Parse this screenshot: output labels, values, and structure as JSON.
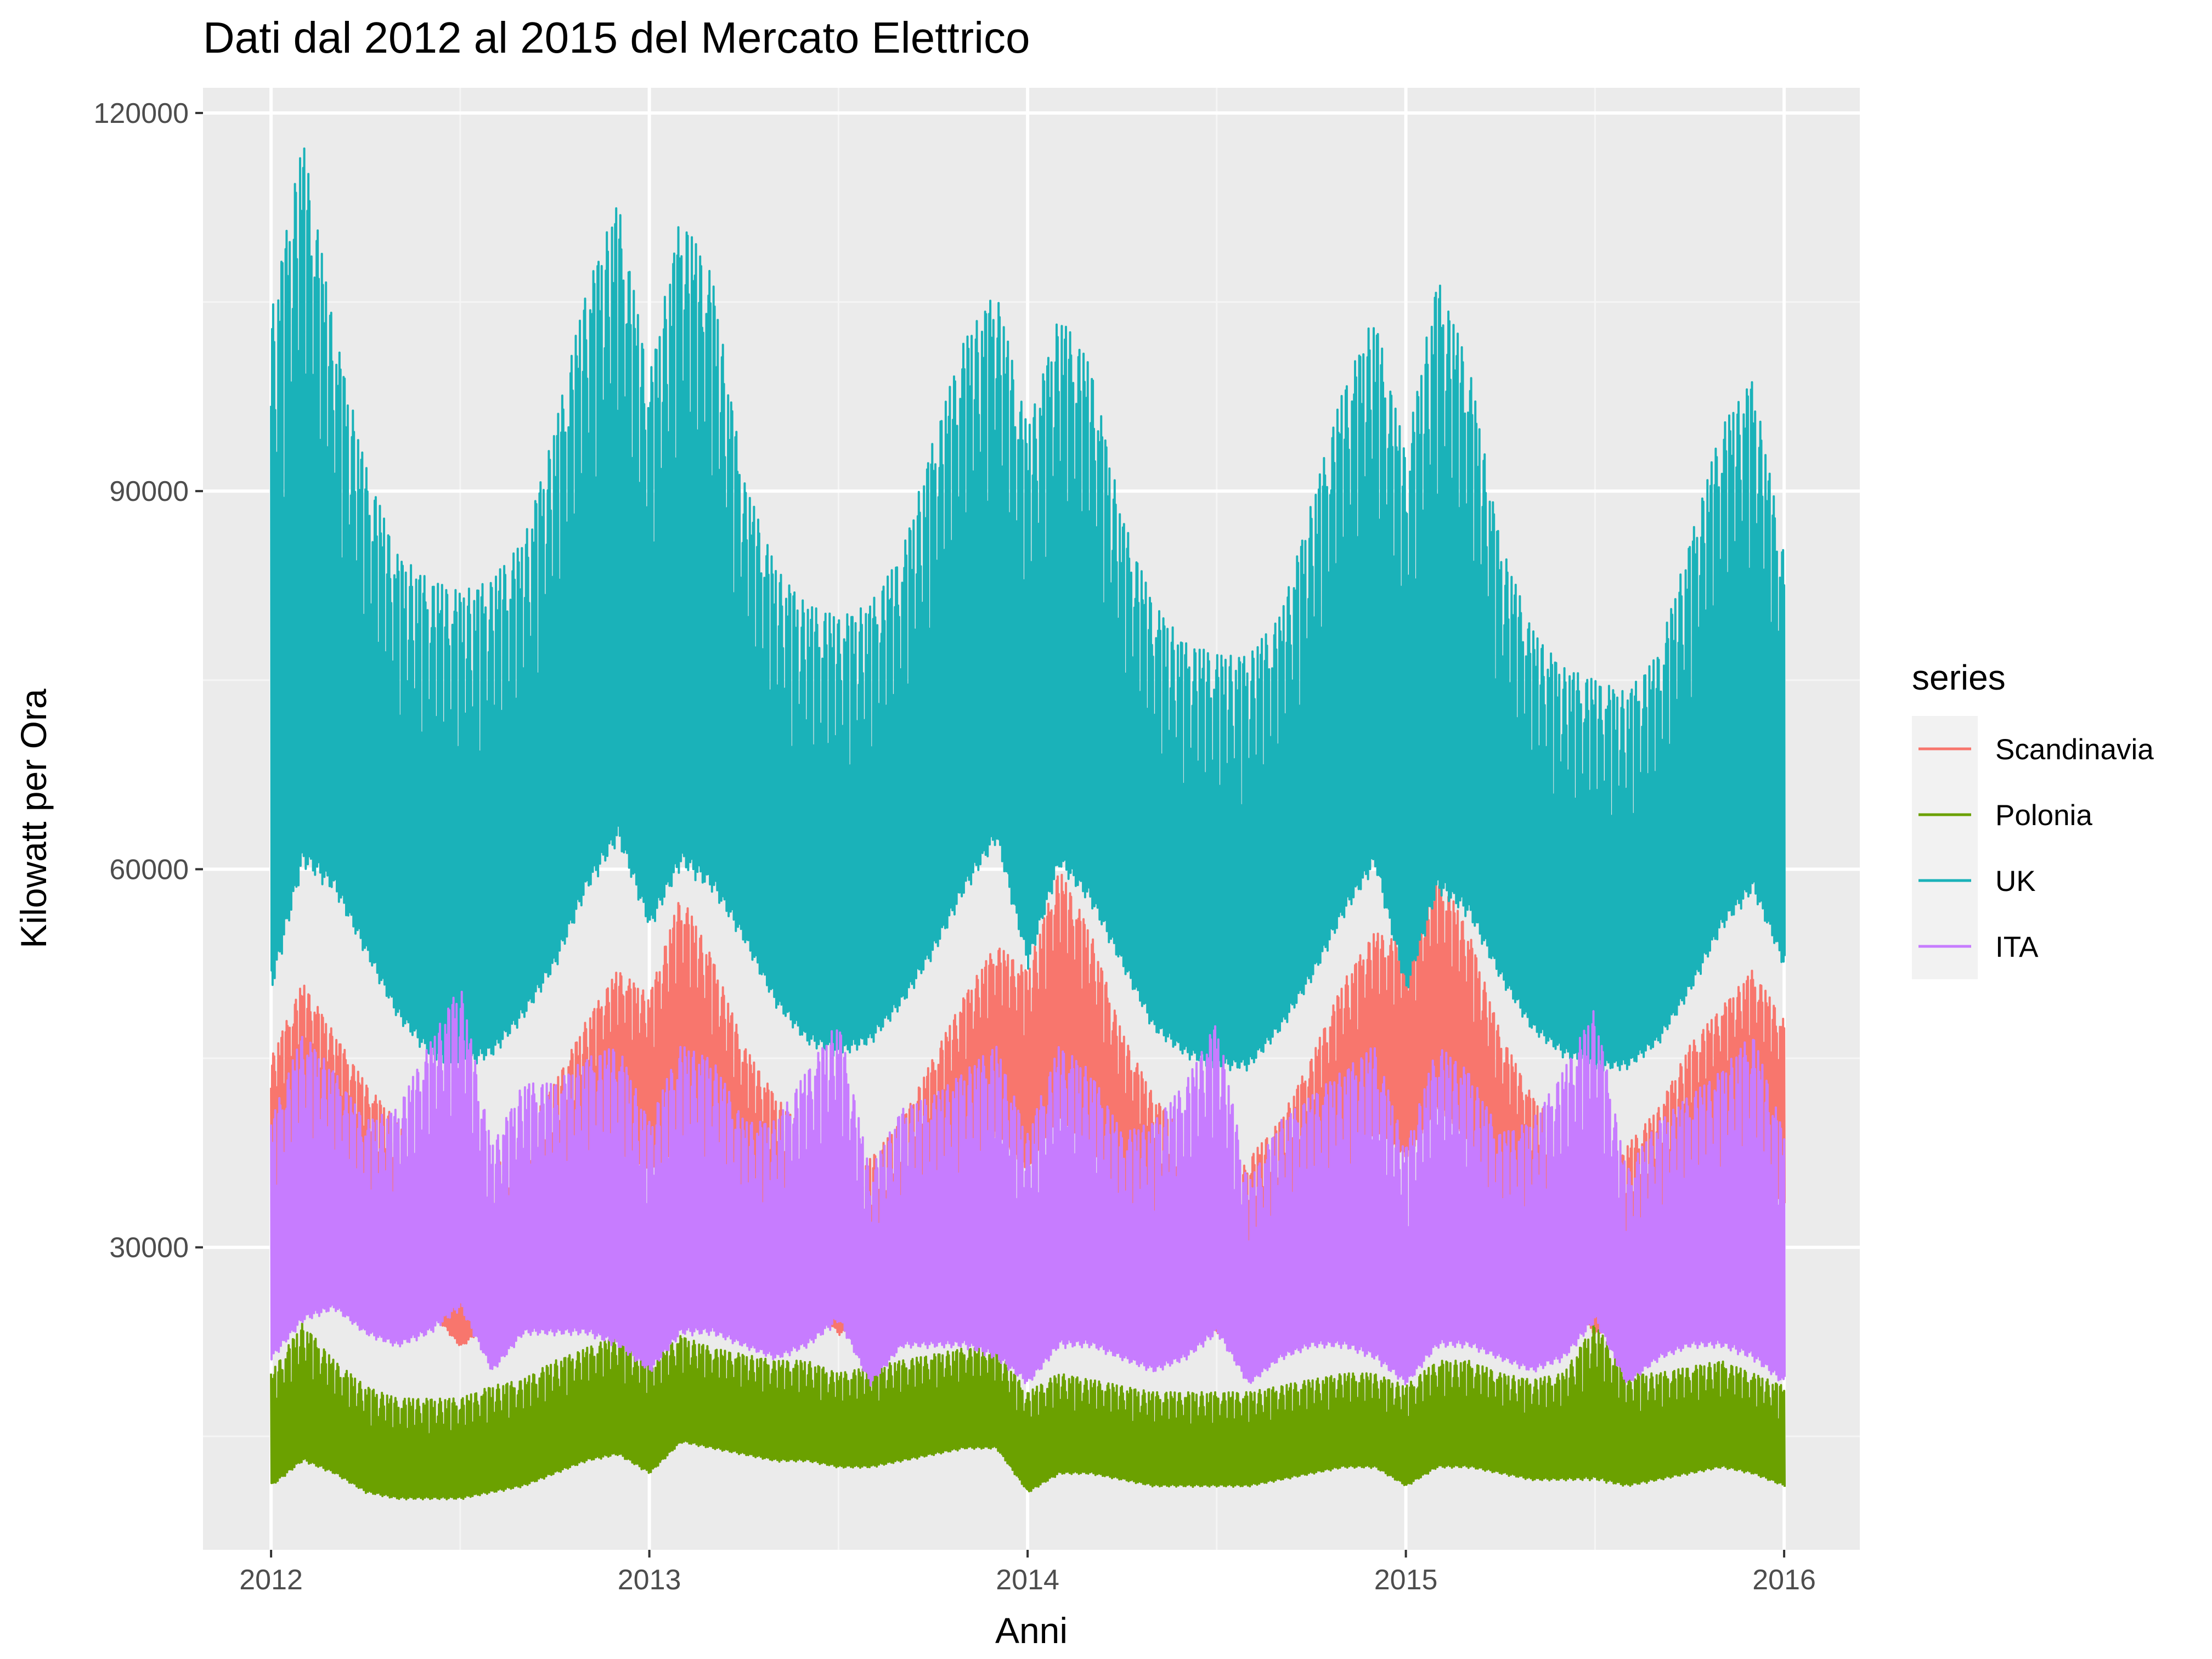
{
  "chart_data": {
    "type": "line",
    "title": "Dati dal 2012 al 2015 del Mercato Elettrico",
    "xlabel": "Anni",
    "ylabel": "Kilowatt per Ora",
    "xlim": [
      2011.82,
      2016.2
    ],
    "ylim": [
      6000,
      122000
    ],
    "x_ticks": [
      2012,
      2013,
      2014,
      2015,
      2016
    ],
    "x_tick_labels": [
      "2012",
      "2013",
      "2014",
      "2015",
      "2016"
    ],
    "y_ticks": [
      30000,
      60000,
      90000,
      120000
    ],
    "y_tick_labels": [
      "30000",
      "60000",
      "90000",
      "120000"
    ],
    "grid": true,
    "legend": {
      "title": "series",
      "position": "right"
    },
    "sampling": "monthly approximate daily min and max of hourly load",
    "x": [
      2012.0,
      2012.083,
      2012.167,
      2012.25,
      2012.333,
      2012.417,
      2012.5,
      2012.583,
      2012.667,
      2012.75,
      2012.833,
      2012.917,
      2013.0,
      2013.083,
      2013.167,
      2013.25,
      2013.333,
      2013.417,
      2013.5,
      2013.583,
      2013.667,
      2013.75,
      2013.833,
      2013.917,
      2014.0,
      2014.083,
      2014.167,
      2014.25,
      2014.333,
      2014.417,
      2014.5,
      2014.583,
      2014.667,
      2014.75,
      2014.833,
      2014.917,
      2015.0,
      2015.083,
      2015.167,
      2015.25,
      2015.333,
      2015.417,
      2015.5,
      2015.583,
      2015.667,
      2015.75,
      2015.833,
      2015.917,
      2016.0
    ],
    "series": [
      {
        "name": "Scandinavia",
        "color": "#F8766D",
        "min": [
          32000,
          36000,
          35000,
          30000,
          27000,
          25000,
          22000,
          24000,
          27000,
          30000,
          34000,
          37000,
          36000,
          38000,
          36000,
          31000,
          28000,
          26000,
          23000,
          24000,
          27000,
          31000,
          35000,
          39000,
          36000,
          40000,
          38000,
          32000,
          29000,
          26000,
          23000,
          24000,
          27000,
          31000,
          35000,
          39000,
          37000,
          41000,
          38000,
          32000,
          29000,
          26000,
          23000,
          24000,
          27000,
          31000,
          35000,
          37000,
          33000
        ],
        "max": [
          45000,
          51000,
          47000,
          43000,
          40000,
          38000,
          33000,
          36000,
          39000,
          43000,
          48000,
          52000,
          50000,
          58000,
          53000,
          46000,
          42000,
          39000,
          33000,
          37000,
          40000,
          45000,
          50000,
          54000,
          52000,
          60000,
          55000,
          47000,
          42000,
          39000,
          33000,
          37000,
          40000,
          45000,
          51000,
          55000,
          54000,
          60000,
          55000,
          47000,
          42000,
          39000,
          33000,
          38000,
          41000,
          46000,
          49000,
          52000,
          48000
        ]
      },
      {
        "name": "Polonia",
        "color": "#6BA100",
        "min": [
          11000,
          13000,
          12000,
          10500,
          10000,
          10000,
          10000,
          10500,
          11000,
          12000,
          13000,
          13500,
          12000,
          14500,
          14000,
          13500,
          13000,
          13000,
          12500,
          12500,
          13000,
          13500,
          14000,
          14000,
          10500,
          12000,
          12000,
          11500,
          11000,
          11000,
          11000,
          11000,
          11500,
          12000,
          12500,
          12500,
          11000,
          12500,
          12500,
          12000,
          11500,
          11500,
          11500,
          11000,
          11500,
          12000,
          12500,
          12000,
          11000
        ],
        "max": [
          20000,
          24000,
          21000,
          19000,
          18000,
          18000,
          18000,
          19000,
          19500,
          21000,
          22000,
          23000,
          21000,
          23000,
          22000,
          21500,
          21000,
          21000,
          20000,
          20500,
          21000,
          21500,
          22000,
          22000,
          18500,
          20000,
          19500,
          19000,
          18500,
          18500,
          18500,
          18500,
          19000,
          19500,
          20000,
          20000,
          19000,
          21000,
          21000,
          20000,
          19500,
          20000,
          24000,
          20000,
          20000,
          20500,
          21000,
          20000,
          19000
        ]
      },
      {
        "name": "UK",
        "color": "#1AB2B9",
        "min": [
          50000,
          60000,
          58000,
          53000,
          48000,
          45000,
          44000,
          45000,
          48000,
          52000,
          58000,
          62000,
          55000,
          60000,
          58000,
          54000,
          49000,
          46000,
          45000,
          46000,
          49000,
          53000,
          58000,
          62000,
          52000,
          60000,
          57000,
          52000,
          47000,
          45000,
          44000,
          44000,
          47000,
          51000,
          56000,
          60000,
          50000,
          58000,
          56000,
          51000,
          47000,
          45000,
          44000,
          44000,
          46000,
          50000,
          55000,
          58000,
          52000
        ],
        "max": [
          104000,
          118000,
          103000,
          92000,
          85000,
          83000,
          82000,
          83000,
          86000,
          95000,
          106000,
          113000,
          99000,
          112000,
          107000,
          91000,
          84000,
          81000,
          80000,
          81000,
          85000,
          94000,
          102000,
          106000,
          95000,
          104000,
          100000,
          88000,
          81000,
          78000,
          77000,
          77000,
          80000,
          89000,
          98000,
          104000,
          93000,
          107000,
          100000,
          86000,
          79000,
          76000,
          75000,
          74000,
          77000,
          86000,
          95000,
          99000,
          85000
        ]
      },
      {
        "name": "ITA",
        "color": "#C77CFF",
        "min": [
          21000,
          24000,
          25000,
          23000,
          22000,
          23000,
          25000,
          20000,
          23000,
          23000,
          23000,
          22000,
          20000,
          23000,
          23000,
          22000,
          21000,
          22000,
          24000,
          19000,
          22000,
          22000,
          22000,
          21000,
          19000,
          22000,
          22000,
          21000,
          20000,
          21000,
          23000,
          19000,
          21000,
          22000,
          22000,
          21000,
          19000,
          22000,
          22000,
          21000,
          20000,
          21000,
          24000,
          19000,
          21000,
          22000,
          22000,
          21000,
          19000
        ],
        "max": [
          40000,
          47000,
          44000,
          40000,
          41000,
          46000,
          51000,
          38000,
          43000,
          43000,
          45000,
          46000,
          40000,
          46000,
          45000,
          40000,
          40000,
          44000,
          48000,
          36000,
          41000,
          42000,
          44000,
          46000,
          39000,
          46000,
          44000,
          39000,
          40000,
          43000,
          48000,
          35000,
          40000,
          42000,
          44000,
          46000,
          38000,
          46000,
          44000,
          39000,
          40000,
          44000,
          49000,
          36000,
          40000,
          42000,
          44000,
          47000,
          39000
        ]
      }
    ]
  }
}
